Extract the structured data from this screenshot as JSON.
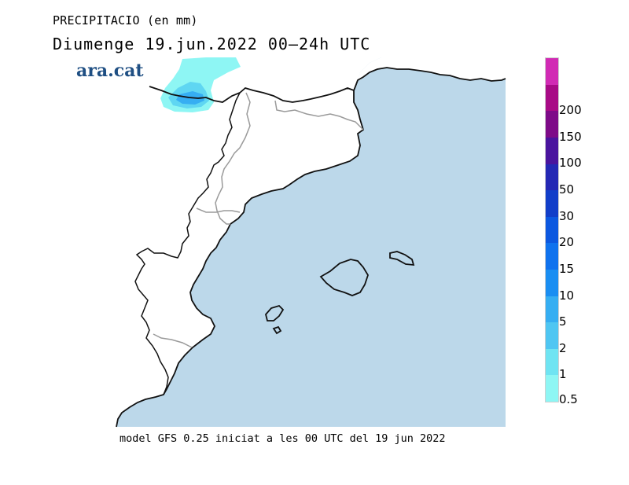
{
  "header": {
    "variable": "PRECIPITACIO (en mm)",
    "date_line": "Diumenge  19.jun.2022 00–24h UTC"
  },
  "logo": {
    "text": "ara.cat"
  },
  "footer": {
    "model_info": "model GFS 0.25 iniciat a les 00 UTC del 19 jun 2022"
  },
  "colorbar": {
    "labels": [
      "0.5",
      "1",
      "2",
      "5",
      "10",
      "15",
      "20",
      "30",
      "50",
      "100",
      "150",
      "200"
    ],
    "colors": [
      "#8ef6f4",
      "#6fe4f2",
      "#4fc6f2",
      "#36aef2",
      "#1a8ef2",
      "#0f72ee",
      "#0c58e0",
      "#123ec9",
      "#2428b4",
      "#4a149e",
      "#7e0a88",
      "#a80a86",
      "#d12ab4"
    ]
  },
  "map": {
    "sea_color": "#bcd8ea",
    "land_color": "#ffffff",
    "precip_area_colors": [
      "#8ef6f4",
      "#4fc6f2",
      "#36aef2"
    ]
  }
}
